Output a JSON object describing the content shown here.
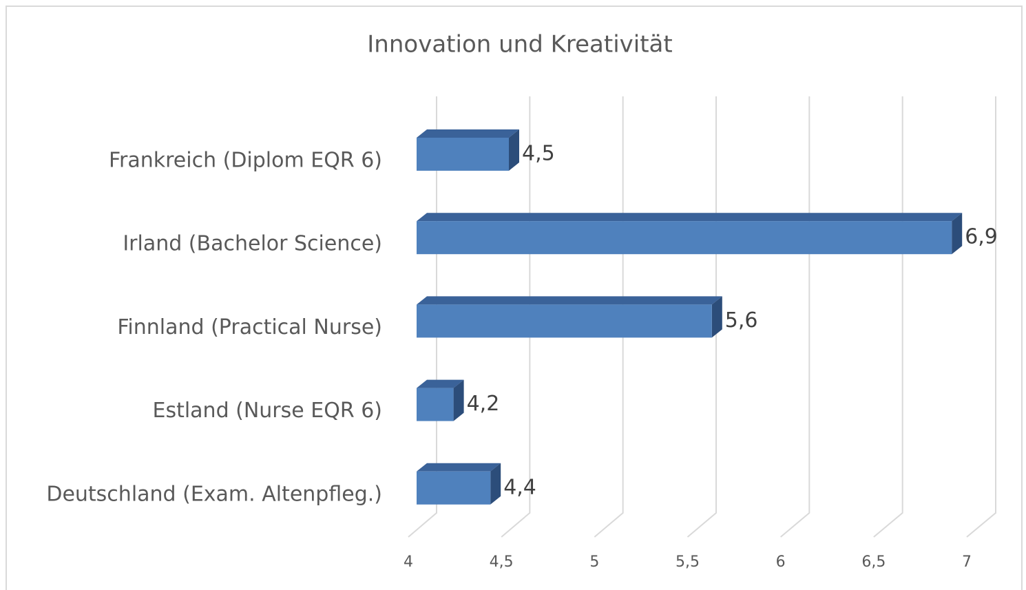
{
  "chart_data": {
    "type": "bar3d_horizontal",
    "title": "Innovation und Kreativität",
    "categories": [
      "Frankreich (Diplom EQR 6)",
      "Irland (Bachelor Science)",
      "Finnland (Practical Nurse)",
      "Estland (Nurse EQR 6)",
      "Deutschland (Exam. Altenpfleg.)"
    ],
    "values": [
      4.5,
      6.9,
      5.6,
      4.2,
      4.4
    ],
    "value_labels": [
      "4,5",
      "6,9",
      "5,6",
      "4,2",
      "4,4"
    ],
    "color": "#4f81bd",
    "xlim": [
      4,
      7
    ],
    "xticks": [
      4,
      {
        "value": 4.5,
        "label": "4,5"
      },
      5,
      {
        "value": 5.5,
        "label": "5,5"
      },
      6,
      {
        "value": 6.5,
        "label": "6,5"
      },
      7
    ],
    "grid": true
  }
}
